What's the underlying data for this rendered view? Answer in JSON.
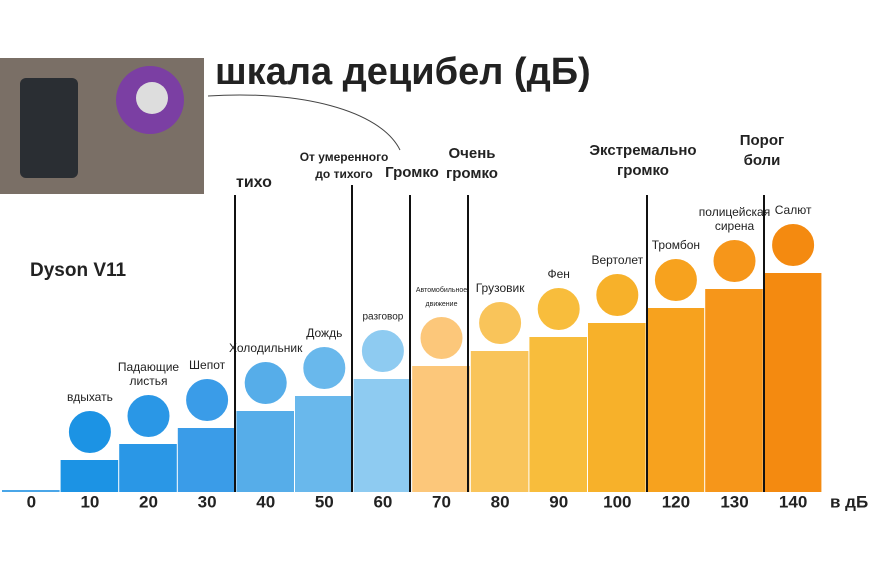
{
  "chart_data": {
    "type": "step-bar",
    "title": "шкала децибел (дБ)",
    "subtitle": "Dyson V11",
    "x_label": "в дБ",
    "x": [
      0,
      10,
      20,
      30,
      40,
      50,
      60,
      70,
      80,
      90,
      100,
      120,
      130,
      140
    ],
    "labels": [
      null,
      [
        "вдыхать"
      ],
      [
        "Падающие",
        "листья"
      ],
      [
        "Шепот"
      ],
      [
        "Холодильник"
      ],
      [
        "Дождь"
      ],
      [
        "разговор"
      ],
      [
        "Автомобильное",
        "движение"
      ],
      [
        "Грузовик"
      ],
      [
        "Фен"
      ],
      [
        "Вертолет"
      ],
      [
        "Тромбон"
      ],
      [
        "полицейская",
        "сирена"
      ],
      [
        "Салют"
      ]
    ],
    "colors": [
      "#4aa6e8",
      "#1c93e4",
      "#2a97e6",
      "#3a9ce8",
      "#56ade9",
      "#69b8ec",
      "#8ecbf1",
      "#fcc77a",
      "#f9c45a",
      "#f8bd3c",
      "#f7b12a",
      "#f7a21e",
      "#f6961a",
      "#f48a10"
    ],
    "zones": [
      [
        "тихо"
      ],
      [
        "От умеренного",
        "до тихого"
      ],
      [
        "Громко"
      ],
      [
        "Очень",
        "громко"
      ],
      [
        "Экстремально",
        "громко"
      ],
      [
        "Порог",
        "боли"
      ]
    ]
  }
}
